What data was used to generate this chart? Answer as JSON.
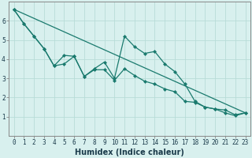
{
  "xlabel": "Humidex (Indice chaleur)",
  "background_color": "#d8f0ee",
  "grid_color": "#b8dcd8",
  "line_color": "#1a7a6e",
  "x_values": [
    0,
    1,
    2,
    3,
    4,
    5,
    6,
    7,
    8,
    9,
    10,
    11,
    12,
    13,
    14,
    15,
    16,
    17,
    18,
    19,
    20,
    21,
    22,
    23
  ],
  "line1": [
    6.6,
    5.85,
    5.2,
    4.55,
    3.65,
    4.2,
    4.15,
    3.1,
    3.5,
    3.85,
    3.0,
    5.2,
    4.65,
    4.3,
    4.4,
    3.75,
    3.35,
    2.7,
    1.8,
    1.5,
    1.4,
    1.2,
    1.05,
    1.2
  ],
  "line2": [
    6.6,
    5.85,
    5.2,
    4.55,
    3.65,
    3.75,
    4.15,
    3.1,
    3.45,
    3.45,
    2.9,
    3.5,
    3.15,
    2.85,
    2.7,
    2.45,
    2.3,
    1.8,
    1.75,
    1.5,
    1.4,
    1.35,
    1.1,
    1.2
  ],
  "line3_x": [
    0,
    23
  ],
  "line3_y": [
    6.6,
    1.2
  ],
  "ylim": [
    0,
    7
  ],
  "xlim": [
    -0.5,
    23.5
  ],
  "yticks": [
    1,
    2,
    3,
    4,
    5,
    6
  ],
  "xticks": [
    0,
    1,
    2,
    3,
    4,
    5,
    6,
    7,
    8,
    9,
    10,
    11,
    12,
    13,
    14,
    15,
    16,
    17,
    18,
    19,
    20,
    21,
    22,
    23
  ],
  "marker": "D",
  "marker_size": 2.0,
  "linewidth": 0.9,
  "xlabel_fontsize": 7,
  "tick_fontsize": 5.5,
  "spine_color": "#888888"
}
